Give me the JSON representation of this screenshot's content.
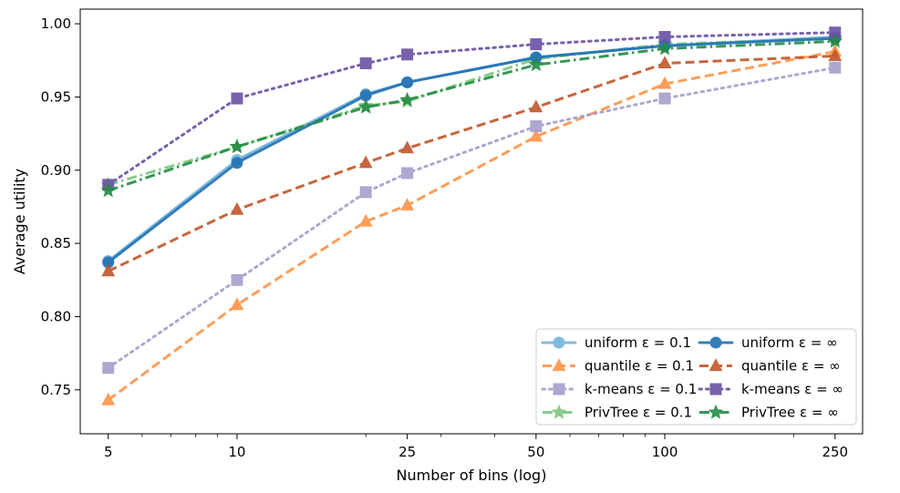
{
  "chart_data": {
    "type": "line",
    "xlabel": "Number of bins (log)",
    "ylabel": "Average utility",
    "xscale": "log",
    "xlim": [
      4.3,
      290
    ],
    "ylim": [
      0.72,
      1.01
    ],
    "xticks": [
      5,
      10,
      25,
      50,
      100,
      250
    ],
    "xtick_labels": [
      "5",
      "10",
      "25",
      "50",
      "100",
      "250"
    ],
    "yticks": [
      0.75,
      0.8,
      0.85,
      0.9,
      0.95,
      1.0
    ],
    "ytick_labels": [
      "0.75",
      "0.80",
      "0.85",
      "0.90",
      "0.95",
      "1.00"
    ],
    "grid": false,
    "legend_position": "lower-right",
    "legend_columns": 2,
    "x": [
      5,
      10,
      20,
      25,
      50,
      100,
      250
    ],
    "series": [
      {
        "name": "uniform ε = 0.1",
        "key": "uniform-eps01",
        "color": "#6baed6",
        "linestyle": "solid",
        "marker": "circle",
        "alpha": 0.85,
        "values": [
          0.838,
          0.907,
          0.952,
          0.96,
          0.977,
          0.985,
          0.991
        ]
      },
      {
        "name": "quantile ε = 0.1",
        "key": "quantile-eps01",
        "color": "#fd8d3c",
        "linestyle": "dashed",
        "marker": "triangle",
        "alpha": 0.85,
        "values": [
          0.743,
          0.808,
          0.865,
          0.876,
          0.923,
          0.959,
          0.981
        ]
      },
      {
        "name": "k-means ε = 0.1",
        "key": "kmeans-eps01",
        "color": "#9e9ac8",
        "linestyle": "dotted",
        "marker": "square",
        "alpha": 0.85,
        "values": [
          0.765,
          0.825,
          0.885,
          0.898,
          0.93,
          0.949,
          0.97
        ]
      },
      {
        "name": "PrivTree ε = 0.1",
        "key": "privtree-eps01",
        "color": "#74c476",
        "linestyle": "dashdot",
        "marker": "star",
        "alpha": 0.85,
        "values": [
          0.89,
          0.916,
          0.944,
          0.947,
          0.976,
          0.986,
          0.99
        ]
      },
      {
        "name": "uniform ε = ∞",
        "key": "uniform-inf",
        "color": "#2171b5",
        "linestyle": "solid",
        "marker": "circle",
        "alpha": 0.9,
        "values": [
          0.837,
          0.905,
          0.951,
          0.96,
          0.977,
          0.985,
          0.99
        ]
      },
      {
        "name": "quantile ε = ∞",
        "key": "quantile-inf",
        "color": "#c0562a",
        "linestyle": "dashed",
        "marker": "triangle",
        "alpha": 0.9,
        "values": [
          0.831,
          0.873,
          0.905,
          0.915,
          0.943,
          0.973,
          0.978
        ]
      },
      {
        "name": "k-means ε = ∞",
        "key": "kmeans-inf",
        "color": "#6a51a3",
        "linestyle": "dotted",
        "marker": "square",
        "alpha": 0.9,
        "values": [
          0.89,
          0.949,
          0.973,
          0.979,
          0.986,
          0.991,
          0.994
        ]
      },
      {
        "name": "PrivTree ε = ∞",
        "key": "privtree-inf",
        "color": "#238b45",
        "linestyle": "dashdot",
        "marker": "star",
        "alpha": 0.9,
        "values": [
          0.886,
          0.916,
          0.943,
          0.948,
          0.972,
          0.983,
          0.988
        ]
      }
    ]
  }
}
